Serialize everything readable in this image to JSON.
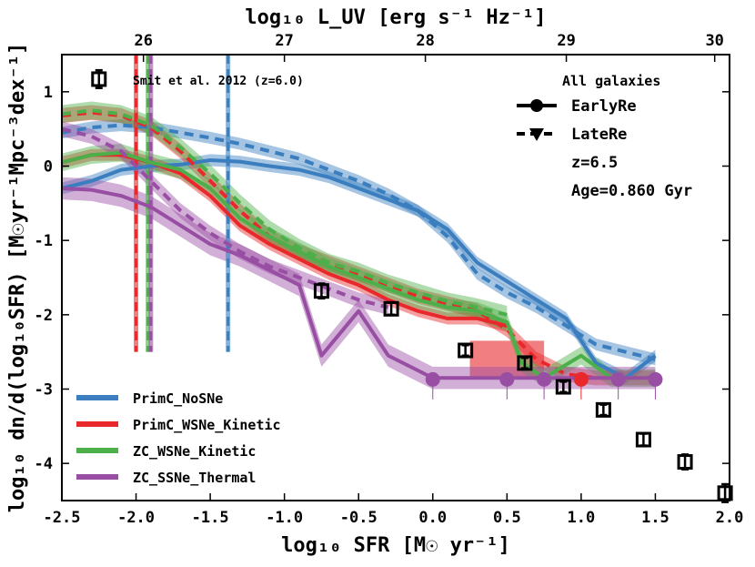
{
  "chart_data": {
    "type": "line",
    "xlabel": "log₁₀ SFR [M☉ yr⁻¹]",
    "ylabel": "log₁₀ dn/d(log₁₀SFR)  [M☉yr⁻¹Mpc⁻³dex⁻¹]",
    "top_xlabel": "log₁₀ L_UV [erg s⁻¹ Hz⁻¹]",
    "xlim": [
      -2.5,
      2.0
    ],
    "ylim": [
      -4.5,
      1.5
    ],
    "x_ticks": [
      "-2.5",
      "-2.0",
      "-1.5",
      "-1.0",
      "-0.5",
      "0.0",
      "0.5",
      "1.0",
      "1.5",
      "2.0"
    ],
    "y_ticks": [
      "1",
      "0",
      "-1",
      "-2",
      "-3",
      "-4"
    ],
    "top_ticks": [
      {
        "label": "26",
        "x": -1.95
      },
      {
        "label": "27",
        "x": -1.0
      },
      {
        "label": "28",
        "x": -0.05
      },
      {
        "label": "29",
        "x": 0.9
      },
      {
        "label": "30",
        "x": 1.9
      }
    ],
    "style_legend": {
      "title": "All galaxies",
      "solid": "EarlyRe",
      "dashed": "LateRe",
      "redshift": "z=6.5",
      "age": "Age=0.860 Gyr"
    },
    "obs": {
      "label": "Smit et al. 2012 (z=6.0)",
      "points": [
        {
          "x": -0.75,
          "y": -1.68,
          "err": 0.1
        },
        {
          "x": -0.28,
          "y": -1.92,
          "err": 0.08
        },
        {
          "x": 0.22,
          "y": -2.48,
          "err": 0.07
        },
        {
          "x": 0.62,
          "y": -2.65,
          "err": 0.07
        },
        {
          "x": 0.88,
          "y": -2.97,
          "err": 0.07
        },
        {
          "x": 1.15,
          "y": -3.28,
          "err": 0.07
        },
        {
          "x": 1.42,
          "y": -3.68,
          "err": 0.08
        },
        {
          "x": 1.7,
          "y": -3.98,
          "err": 0.1
        },
        {
          "x": 1.97,
          "y": -4.4,
          "err": 0.12
        }
      ],
      "legend_marker": {
        "x": -2.25,
        "y": 1.17,
        "err": 0.12
      }
    },
    "series": [
      {
        "name": "PrimC_NoSNe",
        "color": "#3a7ebf",
        "vline": -1.38,
        "early": {
          "x": [
            -2.5,
            -2.3,
            -2.1,
            -1.9,
            -1.7,
            -1.5,
            -1.3,
            -1.1,
            -0.9,
            -0.7,
            -0.5,
            -0.3,
            -0.1,
            0.1,
            0.3,
            0.5,
            0.7,
            0.9,
            1.1,
            1.3,
            1.5
          ],
          "y": [
            -0.3,
            -0.2,
            -0.05,
            0.0,
            0.02,
            0.08,
            0.06,
            0.0,
            -0.05,
            -0.15,
            -0.3,
            -0.45,
            -0.6,
            -0.85,
            -1.3,
            -1.55,
            -1.8,
            -2.05,
            -2.65,
            -2.85,
            -2.55
          ],
          "band": 0.08
        },
        "late": {
          "x": [
            -2.5,
            -2.3,
            -2.1,
            -1.9,
            -1.7,
            -1.5,
            -1.3,
            -1.1,
            -0.9,
            -0.7,
            -0.5,
            -0.3,
            -0.1,
            0.1,
            0.3,
            0.5,
            0.7,
            0.9,
            1.1,
            1.3,
            1.5
          ],
          "y": [
            0.45,
            0.52,
            0.55,
            0.52,
            0.45,
            0.38,
            0.3,
            0.2,
            0.1,
            -0.05,
            -0.2,
            -0.38,
            -0.6,
            -0.95,
            -1.45,
            -1.7,
            -1.9,
            -2.15,
            -2.4,
            -2.5,
            -2.6
          ],
          "band": 0.08
        },
        "dots": []
      },
      {
        "name": "PrimC_WSNe_Kinetic",
        "color": "#e8282b",
        "vline": -2.0,
        "early": {
          "x": [
            -2.5,
            -2.3,
            -2.1,
            -1.9,
            -1.7,
            -1.5,
            -1.3,
            -1.1,
            -0.9,
            -0.7,
            -0.5,
            -0.3,
            -0.1,
            0.1,
            0.3,
            0.5
          ],
          "y": [
            0.05,
            0.15,
            0.15,
            0.05,
            -0.1,
            -0.4,
            -0.8,
            -1.05,
            -1.25,
            -1.45,
            -1.6,
            -1.8,
            -1.95,
            -2.05,
            -2.05,
            -2.15
          ],
          "band": 0.08
        },
        "late": {
          "x": [
            -2.5,
            -2.3,
            -2.1,
            -1.9,
            -1.7,
            -1.5,
            -1.3,
            -1.1,
            -0.9,
            -0.7,
            -0.5,
            -0.3,
            -0.1,
            0.1,
            0.3,
            0.5,
            0.7,
            0.9,
            1.1,
            1.3,
            1.5
          ],
          "y": [
            0.68,
            0.72,
            0.68,
            0.52,
            0.2,
            -0.2,
            -0.6,
            -0.95,
            -1.15,
            -1.3,
            -1.45,
            -1.6,
            -1.75,
            -1.85,
            -1.95,
            -2.2,
            -2.6,
            -2.8,
            -2.85,
            -2.85,
            -2.85
          ],
          "band": 0.1
        },
        "dots": [
          {
            "x": 1.0,
            "y": -2.87
          }
        ],
        "wide_band": {
          "x": [
            0.25,
            0.75
          ],
          "y": [
            -2.35,
            -2.85
          ]
        }
      },
      {
        "name": "ZC_WSNe_Kinetic",
        "color": "#4daf4a",
        "vline": -1.92,
        "early": {
          "x": [
            -2.5,
            -2.3,
            -2.1,
            -1.9,
            -1.7,
            -1.5,
            -1.3,
            -1.1,
            -0.9,
            -0.7,
            -0.5,
            -0.3,
            -0.1,
            0.1,
            0.3,
            0.5,
            0.6,
            0.75,
            1.0,
            1.2,
            1.5
          ],
          "y": [
            0.05,
            0.15,
            0.18,
            0.05,
            -0.05,
            -0.3,
            -0.7,
            -0.95,
            -1.15,
            -1.35,
            -1.5,
            -1.65,
            -1.8,
            -1.9,
            -1.95,
            -2.1,
            -2.65,
            -2.85,
            -2.55,
            -2.85,
            -2.85
          ],
          "band": 0.12
        },
        "late": {
          "x": [
            -2.5,
            -2.3,
            -2.1,
            -1.9,
            -1.7,
            -1.5,
            -1.3,
            -1.1,
            -0.9,
            -0.7,
            -0.5,
            -0.3,
            -0.1,
            0.1,
            0.3,
            0.5
          ],
          "y": [
            0.7,
            0.75,
            0.7,
            0.55,
            0.25,
            -0.1,
            -0.5,
            -0.85,
            -1.1,
            -1.3,
            -1.42,
            -1.58,
            -1.7,
            -1.82,
            -1.9,
            -2.0
          ],
          "band": 0.12
        },
        "dots": []
      },
      {
        "name": "ZC_SSNe_Thermal",
        "color": "#984ea3",
        "vline": -1.9,
        "early": {
          "x": [
            -2.5,
            -2.3,
            -2.1,
            -1.9,
            -1.7,
            -1.5,
            -1.3,
            -1.1,
            -0.9,
            -0.75,
            -0.5,
            -0.3,
            0.0,
            0.25,
            0.5,
            0.75,
            1.0,
            1.25,
            1.5
          ],
          "y": [
            -0.3,
            -0.32,
            -0.4,
            -0.55,
            -0.8,
            -1.05,
            -1.2,
            -1.4,
            -1.6,
            -2.55,
            -1.95,
            -2.55,
            -2.85,
            -2.85,
            -2.85,
            -2.85,
            -2.85,
            -2.85,
            -2.85
          ],
          "band": 0.15
        },
        "late": {
          "x": [
            -2.5,
            -2.3,
            -2.1,
            -1.9,
            -1.7,
            -1.5,
            -1.3,
            -1.1,
            -0.9,
            -0.7,
            -0.5,
            -0.3
          ],
          "y": [
            0.5,
            0.4,
            0.2,
            -0.2,
            -0.6,
            -0.9,
            -1.15,
            -1.35,
            -1.5,
            -1.65,
            -1.8,
            -1.9
          ],
          "band": 0.1
        },
        "dots": [
          {
            "x": 0.0,
            "y": -2.87
          },
          {
            "x": 0.5,
            "y": -2.87
          },
          {
            "x": 0.75,
            "y": -2.87
          },
          {
            "x": 1.25,
            "y": -2.87
          },
          {
            "x": 1.5,
            "y": -2.87
          }
        ]
      }
    ]
  }
}
